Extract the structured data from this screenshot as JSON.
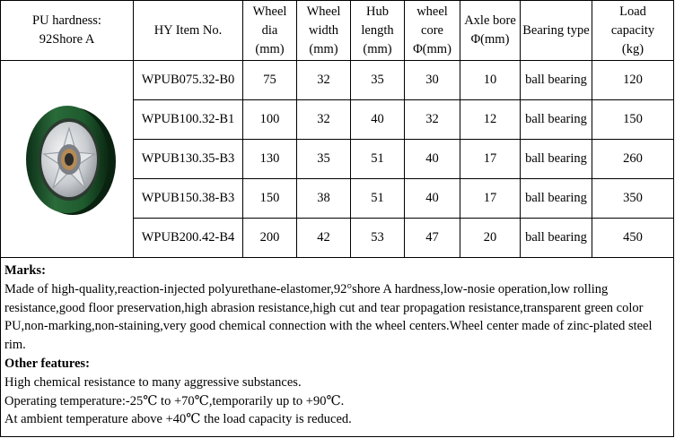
{
  "header": {
    "pu_hardness_line1": "PU hardness:",
    "pu_hardness_line2": "92Shore A",
    "item_no": "HY Item No.",
    "wheel_dia": [
      "Wheel",
      "dia",
      "(mm)"
    ],
    "wheel_width": [
      "Wheel",
      "width",
      "(mm)"
    ],
    "hub_length": [
      "Hub",
      "length",
      "(mm)"
    ],
    "wheel_core": [
      "wheel",
      "core",
      "Φ(mm)"
    ],
    "axle_bore": [
      "Axle bore",
      "Φ(mm)"
    ],
    "bearing_type": "Bearing type",
    "load_capacity": [
      "Load",
      "capacity",
      "(kg)"
    ]
  },
  "rows": [
    {
      "item": "WPUB075.32-B0",
      "dia": "75",
      "width": "32",
      "hub": "35",
      "core": "30",
      "bore": "10",
      "bearing": "ball bearing",
      "load": "120"
    },
    {
      "item": "WPUB100.32-B1",
      "dia": "100",
      "width": "32",
      "hub": "40",
      "core": "32",
      "bore": "12",
      "bearing": "ball bearing",
      "load": "150"
    },
    {
      "item": "WPUB130.35-B3",
      "dia": "130",
      "width": "35",
      "hub": "51",
      "core": "40",
      "bore": "17",
      "bearing": "ball bearing",
      "load": "260"
    },
    {
      "item": "WPUB150.38-B3",
      "dia": "150",
      "width": "38",
      "hub": "51",
      "core": "40",
      "bore": "17",
      "bearing": "ball bearing",
      "load": "350"
    },
    {
      "item": "WPUB200.42-B4",
      "dia": "200",
      "width": "42",
      "hub": "53",
      "core": "47",
      "bore": "20",
      "bearing": "ball bearing",
      "load": "450"
    }
  ],
  "image": {
    "icon": "pu-wheel-image",
    "tread_color": "#1f5a2e",
    "hub_color": "#c9ccd0"
  },
  "notes": {
    "marks_heading": "Marks:",
    "marks_text": "Made of high-quality,reaction-injected polyurethane-elastomer,92°shore A hardness,low-nosie operation,low rolling resistance,good floor preservation,high abrasion resistance,high cut and tear propagation resistance,transparent green color PU,non-marking,non-staining,very good chemical connection with the wheel centers.Wheel center made of zinc-plated steel rim.",
    "other_heading": "Other features:",
    "other_lines": [
      "High chemical resistance to many aggressive substances.",
      "Operating temperature:-25℃ to +70℃,temporarily up to +90℃.",
      "At ambient temperature above +40℃ the load capacity is reduced."
    ]
  }
}
